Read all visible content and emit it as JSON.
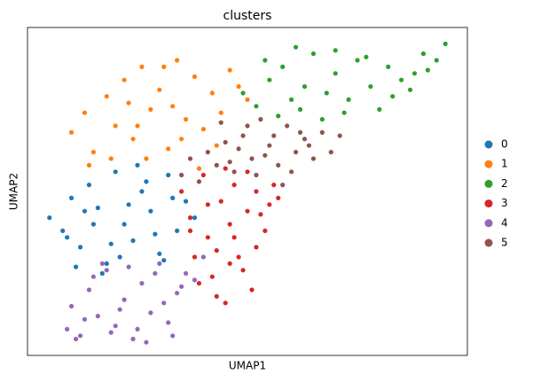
{
  "chart_data": {
    "type": "scatter",
    "title": "clusters",
    "x_label": "UMAP1",
    "y_label": "UMAP2",
    "xlim": [
      0,
      100
    ],
    "ylim": [
      0,
      100
    ],
    "grid": false,
    "legend": "right",
    "series": [
      {
        "name": "0",
        "color": "#1f77b4",
        "x": [
          5,
          8,
          10,
          12,
          14,
          16,
          18,
          20,
          22,
          24,
          26,
          28,
          30,
          32,
          34,
          36,
          38,
          9,
          13,
          17,
          21,
          25,
          29,
          33,
          11,
          15,
          19,
          23,
          27,
          31
        ],
        "values": [
          42,
          38,
          48,
          33,
          52,
          45,
          28,
          56,
          40,
          35,
          50,
          44,
          31,
          55,
          38,
          47,
          42,
          36,
          44,
          25,
          30,
          58,
          37,
          48,
          27,
          40,
          34,
          46,
          53,
          29
        ]
      },
      {
        "name": "1",
        "color": "#ff7f0e",
        "x": [
          10,
          13,
          15,
          18,
          20,
          22,
          24,
          26,
          28,
          30,
          32,
          34,
          36,
          38,
          40,
          42,
          44,
          46,
          48,
          50,
          14,
          19,
          23,
          27,
          31,
          35,
          39,
          43,
          25,
          33
        ],
        "values": [
          68,
          74,
          62,
          79,
          70,
          84,
          66,
          88,
          75,
          81,
          63,
          90,
          72,
          85,
          69,
          80,
          74,
          87,
          82,
          78,
          58,
          60,
          77,
          60,
          88,
          66,
          57,
          64,
          70,
          76
        ]
      },
      {
        "name": "2",
        "color": "#2ca02c",
        "x": [
          49,
          52,
          55,
          58,
          60,
          63,
          65,
          68,
          70,
          72,
          75,
          78,
          80,
          82,
          85,
          88,
          90,
          93,
          95,
          54,
          57,
          62,
          67,
          73,
          77,
          83,
          87,
          91,
          61,
          70
        ],
        "values": [
          80,
          76,
          84,
          88,
          78,
          82,
          92,
          80,
          86,
          74,
          90,
          82,
          75,
          88,
          84,
          86,
          92,
          90,
          95,
          90,
          73,
          75,
          72,
          78,
          91,
          79,
          81,
          87,
          94,
          93
        ]
      },
      {
        "name": "3",
        "color": "#d62728",
        "x": [
          35,
          37,
          38,
          40,
          41,
          42,
          44,
          45,
          46,
          47,
          48,
          50,
          51,
          52,
          54,
          55,
          56,
          57,
          39,
          43,
          49,
          53,
          45,
          41,
          47,
          37,
          50,
          43,
          46,
          52
        ],
        "values": [
          50,
          42,
          30,
          55,
          36,
          24,
          47,
          16,
          40,
          52,
          30,
          44,
          20,
          50,
          38,
          46,
          52,
          48,
          22,
          32,
          26,
          43,
          57,
          46,
          36,
          38,
          56,
          18,
          28,
          33
        ]
      },
      {
        "name": "4",
        "color": "#9467bd",
        "x": [
          9,
          10,
          12,
          14,
          16,
          18,
          20,
          22,
          24,
          26,
          28,
          30,
          32,
          34,
          36,
          38,
          40,
          11,
          15,
          19,
          23,
          27,
          31,
          35,
          13,
          17,
          21,
          25,
          29,
          33
        ],
        "values": [
          8,
          15,
          6,
          20,
          12,
          26,
          9,
          17,
          5,
          22,
          13,
          28,
          10,
          19,
          25,
          23,
          30,
          5,
          24,
          7,
          27,
          4,
          16,
          21,
          11,
          28,
          14,
          8,
          25,
          6
        ]
      },
      {
        "name": "5",
        "color": "#8c564b",
        "x": [
          35,
          37,
          39,
          41,
          43,
          45,
          47,
          49,
          51,
          53,
          55,
          57,
          59,
          61,
          63,
          65,
          67,
          69,
          71,
          44,
          48,
          52,
          56,
          60,
          64,
          50,
          58,
          46,
          54,
          62
        ],
        "values": [
          55,
          60,
          53,
          62,
          58,
          65,
          56,
          67,
          60,
          72,
          64,
          58,
          70,
          62,
          66,
          60,
          68,
          62,
          67,
          71,
          63,
          55,
          67,
          56,
          64,
          70,
          52,
          59,
          61,
          68
        ]
      }
    ]
  }
}
